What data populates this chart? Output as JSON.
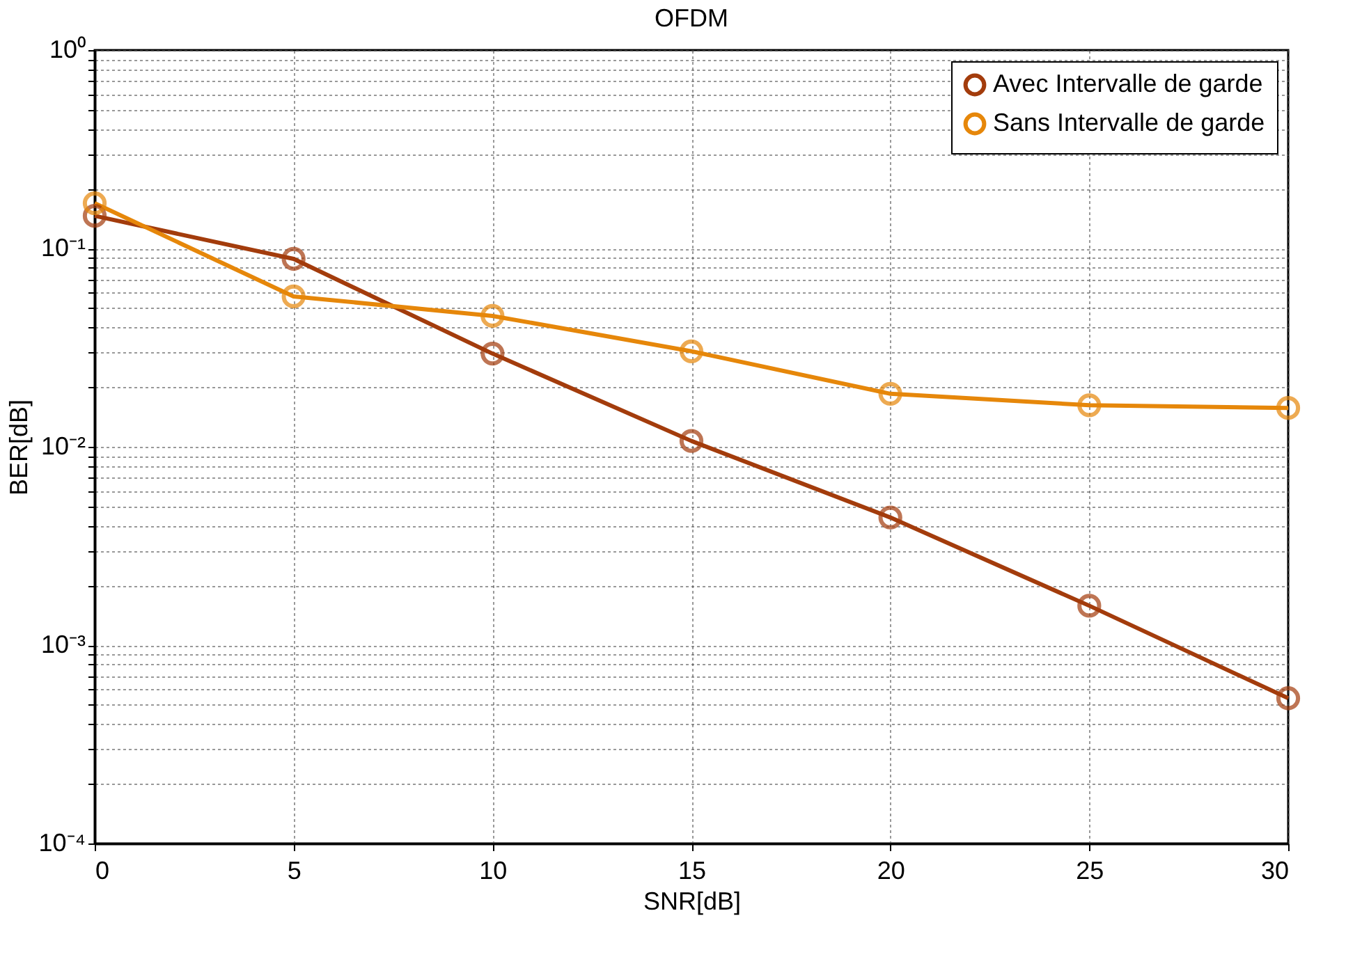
{
  "chart_data": {
    "type": "line",
    "title": "OFDM",
    "xlabel": "SNR[dB]",
    "ylabel": "BER[dB]",
    "x": [
      0,
      5,
      10,
      15,
      20,
      25,
      30
    ],
    "series": [
      {
        "name": "Avec Intervalle de garde",
        "color": "#a33c0c",
        "values": [
          0.146,
          0.0886,
          0.0295,
          0.0107,
          0.0044,
          0.00158,
          0.00054
        ]
      },
      {
        "name": "Sans Intervalle de garde",
        "color": "#e6870a",
        "values": [
          0.169,
          0.0573,
          0.0457,
          0.0303,
          0.0185,
          0.0162,
          0.0157
        ]
      }
    ],
    "log": "y",
    "xlim": [
      0,
      30
    ],
    "xticks": [
      0,
      5,
      10,
      15,
      20,
      25,
      30
    ],
    "ylim": [
      0.0001,
      1
    ],
    "yticks": [
      {
        "value": 0.0001,
        "label": "10⁻⁴"
      },
      {
        "value": 0.0002,
        "label": null
      },
      {
        "value": 0.0003,
        "label": null
      },
      {
        "value": 0.0004,
        "label": null
      },
      {
        "value": 0.0005,
        "label": null
      },
      {
        "value": 0.0006,
        "label": null
      },
      {
        "value": 0.0007,
        "label": null
      },
      {
        "value": 0.0008,
        "label": null
      },
      {
        "value": 0.0009,
        "label": null
      },
      {
        "value": 0.001,
        "label": "10⁻³"
      },
      {
        "value": 0.002,
        "label": null
      },
      {
        "value": 0.003,
        "label": null
      },
      {
        "value": 0.004,
        "label": null
      },
      {
        "value": 0.005,
        "label": null
      },
      {
        "value": 0.006,
        "label": null
      },
      {
        "value": 0.007,
        "label": null
      },
      {
        "value": 0.008,
        "label": null
      },
      {
        "value": 0.009,
        "label": null
      },
      {
        "value": 0.01,
        "label": "10⁻²"
      },
      {
        "value": 0.02,
        "label": null
      },
      {
        "value": 0.03,
        "label": null
      },
      {
        "value": 0.04,
        "label": null
      },
      {
        "value": 0.05,
        "label": null
      },
      {
        "value": 0.06,
        "label": null
      },
      {
        "value": 0.07,
        "label": null
      },
      {
        "value": 0.08,
        "label": null
      },
      {
        "value": 0.09,
        "label": null
      },
      {
        "value": 0.1,
        "label": "10⁻¹"
      },
      {
        "value": 0.2,
        "label": null
      },
      {
        "value": 0.3,
        "label": null
      },
      {
        "value": 0.4,
        "label": null
      },
      {
        "value": 0.5,
        "label": null
      },
      {
        "value": 0.6,
        "label": null
      },
      {
        "value": 0.7,
        "label": null
      },
      {
        "value": 0.8,
        "label": null
      },
      {
        "value": 0.9,
        "label": null
      },
      {
        "value": 1,
        "label": "10⁰"
      }
    ],
    "grid": true,
    "legend": "top right",
    "marker": "circle",
    "line_style": "solid"
  }
}
